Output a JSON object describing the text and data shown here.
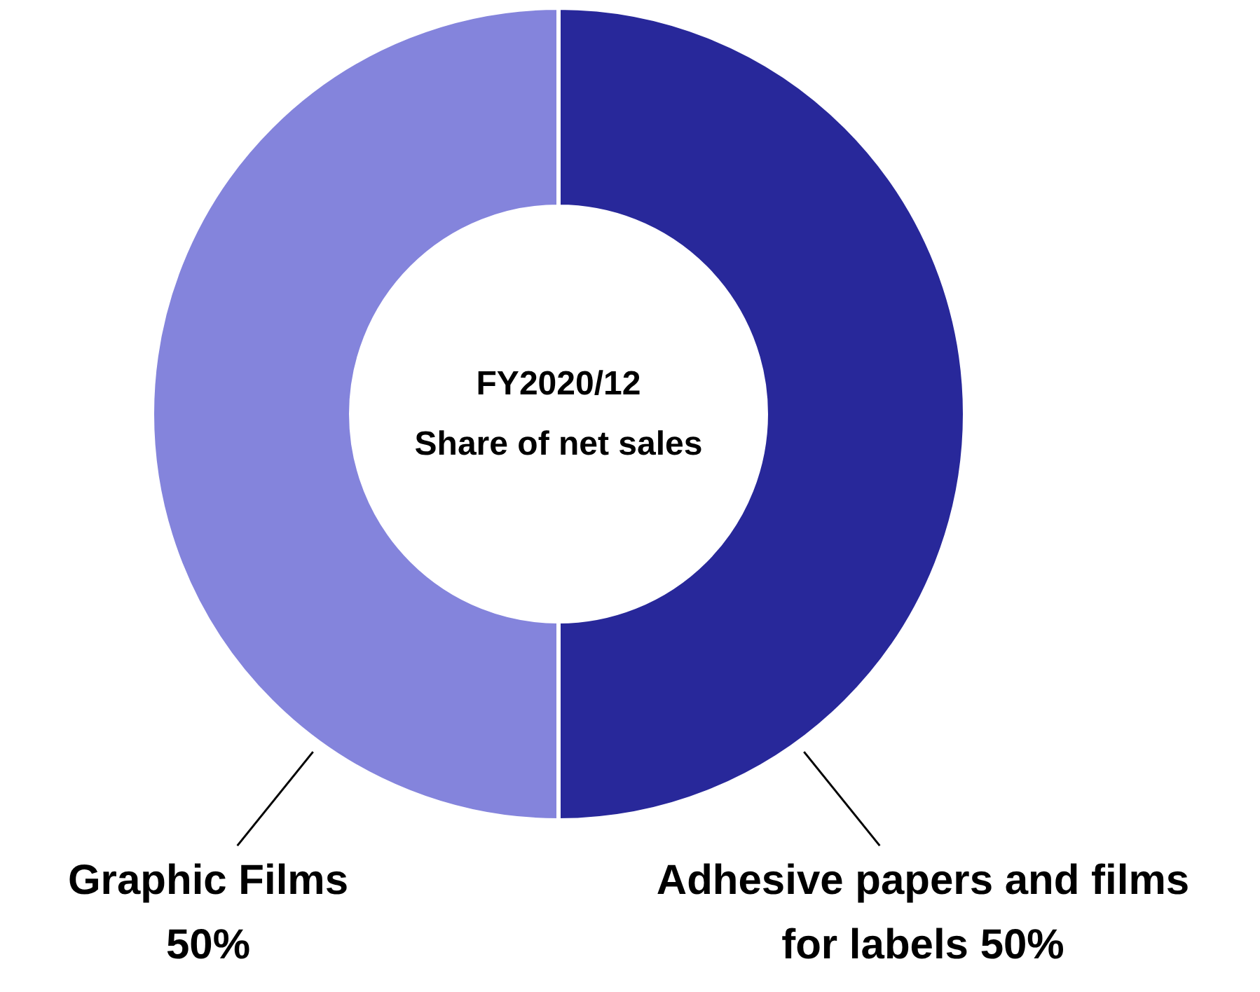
{
  "chart_data": {
    "type": "donut",
    "title": "FY2020/12\nShare of net sales",
    "categories": [
      "Graphic Films",
      "Adhesive papers and films for labels"
    ],
    "values": [
      50,
      50
    ],
    "colors": [
      "#8484dc",
      "#28289a"
    ],
    "value_labels": [
      "50%",
      "50%"
    ]
  }
}
